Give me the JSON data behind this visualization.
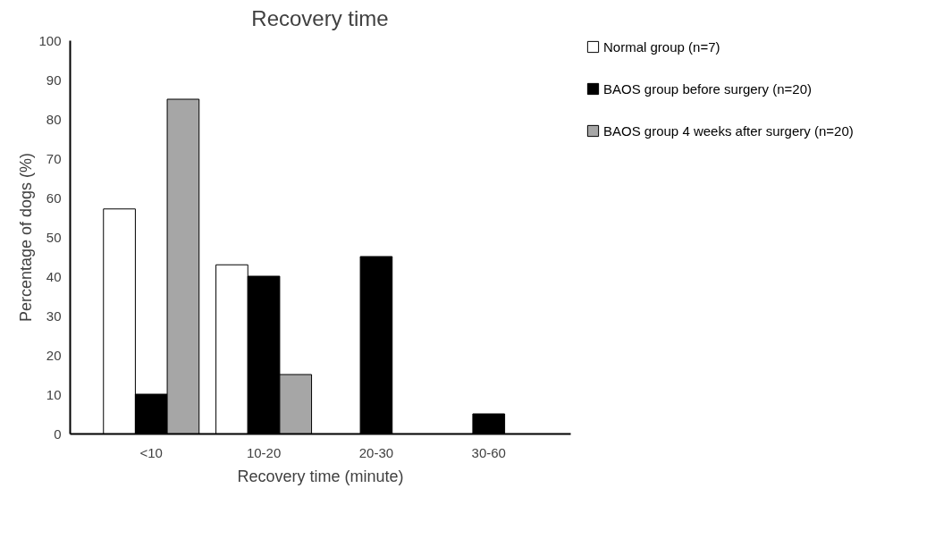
{
  "chart_data": {
    "type": "bar",
    "title": "Recovery time",
    "xlabel": "Recovery time (minute)",
    "ylabel": "Percentage of dogs (%)",
    "categories": [
      "<10",
      "10-20",
      "20-30",
      "30-60"
    ],
    "series": [
      {
        "name": "Normal group (n=7)",
        "color": "#ffffff",
        "values": [
          57.1,
          42.9,
          0,
          0
        ]
      },
      {
        "name": "BAOS group before surgery (n=20)",
        "color": "#000000",
        "values": [
          10,
          40,
          45,
          5
        ]
      },
      {
        "name": "BAOS group 4 weeks after surgery (n=20)",
        "color": "#a6a6a6",
        "values": [
          85,
          15,
          0,
          0
        ]
      }
    ],
    "ylim": [
      0,
      100
    ],
    "yticks": [
      0,
      10,
      20,
      30,
      40,
      50,
      60,
      70,
      80,
      90,
      100
    ],
    "grid": false,
    "legend": "right"
  }
}
